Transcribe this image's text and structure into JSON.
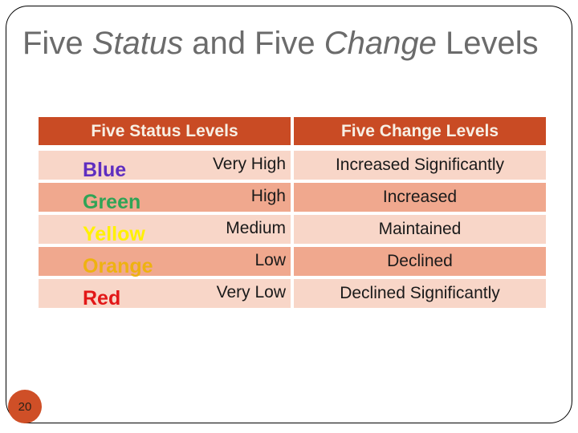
{
  "title": {
    "part1": "Five ",
    "part2": "Status",
    "part3": " and Five ",
    "part4": "Change",
    "part5": " Levels"
  },
  "table": {
    "headers": {
      "status": "Five Status Levels",
      "change": "Five Change Levels"
    },
    "rows": [
      {
        "color_label": "Blue",
        "color_hex": "#5F2EC0",
        "status": "Very High",
        "change": "Increased Significantly"
      },
      {
        "color_label": "Green",
        "color_hex": "#2FA456",
        "status": "High",
        "change": "Increased"
      },
      {
        "color_label": "Yellow",
        "color_hex": "#FFF101",
        "status": "Medium",
        "change": "Maintained"
      },
      {
        "color_label": "Orange",
        "color_hex": "#EEB211",
        "status": "Low",
        "change": "Declined"
      },
      {
        "color_label": "Red",
        "color_hex": "#E21717",
        "status": "Very Low",
        "change": "Declined Significantly"
      }
    ]
  },
  "page_number": "20",
  "colors": {
    "header_bg": "#C94B24",
    "row_dark": "#F0A88E",
    "row_light": "#F8D6C8",
    "title_text": "#6B6B6B",
    "badge_bg": "#CF4F27"
  }
}
